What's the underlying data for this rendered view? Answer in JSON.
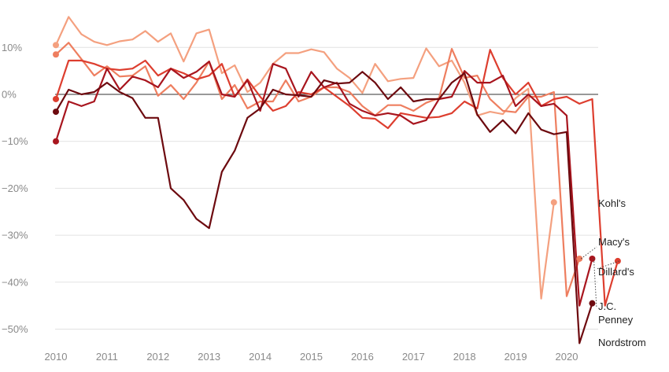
{
  "chart_data": {
    "type": "line",
    "x_start": 2010.0,
    "x_step": 0.25,
    "xlim": [
      2010,
      2020.5
    ],
    "ylim": [
      -52,
      17
    ],
    "y_ticks": [
      10,
      0,
      -10,
      -20,
      -30,
      -40,
      -50
    ],
    "y_tick_labels": [
      "10%",
      "0%",
      "−10%",
      "−20%",
      "−30%",
      "−40%",
      "−50%"
    ],
    "x_ticks": [
      2010,
      2011,
      2012,
      2013,
      2014,
      2015,
      2016,
      2017,
      2018,
      2019,
      2020
    ],
    "x_tick_labels": [
      "2010",
      "2011",
      "2012",
      "2013",
      "2014",
      "2015",
      "2016",
      "2017",
      "2018",
      "2019",
      "2020"
    ],
    "grid": true,
    "series": [
      {
        "name": "Kohl's",
        "color": "#f4a07f",
        "values": [
          10.5,
          16.5,
          12.8,
          11.2,
          10.5,
          11.3,
          11.7,
          13.5,
          11.2,
          13.0,
          7.0,
          13.0,
          13.8,
          4.5,
          6.2,
          0.5,
          2.5,
          6.5,
          8.8,
          8.8,
          9.6,
          9.0,
          5.5,
          3.5,
          0.3,
          6.5,
          2.8,
          3.3,
          3.5,
          9.8,
          6.0,
          7.2,
          2.5,
          -4.5,
          -3.7,
          -4.2,
          -0.8,
          1.2,
          -43.5,
          -23.0
        ]
      },
      {
        "name": "Macy's",
        "color": "#ee7e5f",
        "values": [
          8.5,
          11.0,
          7.5,
          4.0,
          6.0,
          3.8,
          4.0,
          6.0,
          -0.3,
          2.0,
          -1.0,
          2.5,
          7.0,
          -1.0,
          2.0,
          -3.0,
          -1.5,
          -1.5,
          3.0,
          -1.5,
          -0.5,
          1.5,
          1.5,
          0.5,
          -2.5,
          -4.5,
          -2.3,
          -2.3,
          -3.5,
          -1.8,
          -0.8,
          9.7,
          3.5,
          4.0,
          -1.0,
          -3.5,
          -3.8,
          -0.5,
          -0.5,
          0.5,
          -43.0,
          -35.0
        ]
      },
      {
        "name": "Dillard's",
        "color": "#dd3e2f",
        "values": [
          -1.0,
          7.2,
          7.2,
          6.5,
          5.5,
          5.2,
          5.5,
          7.2,
          4.0,
          5.5,
          4.5,
          3.2,
          4.0,
          6.5,
          -0.5,
          3.2,
          -0.5,
          -3.5,
          -2.5,
          0.5,
          0.0,
          1.5,
          -0.5,
          -2.5,
          -5.0,
          -5.2,
          -7.2,
          -4.0,
          -4.5,
          -5.0,
          -4.8,
          -4.0,
          -1.5,
          -3.0,
          9.5,
          3.5,
          0.0,
          2.5,
          -2.5,
          -1.0,
          -0.5,
          -2.0,
          -1.0,
          -45.0,
          -35.5
        ]
      },
      {
        "name": "J.C. Penney",
        "color": "#a8151e",
        "values": [
          -10.0,
          -1.5,
          -2.5,
          -1.5,
          5.5,
          1.0,
          3.8,
          3.0,
          1.5,
          5.5,
          3.5,
          4.8,
          7.0,
          0.0,
          -0.5,
          3.0,
          -3.5,
          6.5,
          5.5,
          -0.5,
          4.8,
          1.5,
          2.5,
          -2.0,
          -3.5,
          -4.5,
          -4.0,
          -4.5,
          -6.3,
          -5.5,
          -1.0,
          -0.5,
          5.0,
          2.5,
          2.5,
          4.0,
          -2.5,
          0.0,
          -2.5,
          -2.0,
          -4.5,
          -45.0,
          -35.0
        ]
      },
      {
        "name": "Nordstrom",
        "color": "#6d0a0f",
        "values": [
          -3.7,
          1.0,
          0.0,
          0.5,
          2.5,
          0.5,
          -0.8,
          -5.0,
          -5.0,
          -20.0,
          -22.5,
          -26.5,
          -28.5,
          -16.5,
          -12.0,
          -5.0,
          -3.0,
          1.0,
          0.0,
          -0.2,
          -0.5,
          3.0,
          2.3,
          2.5,
          4.8,
          2.5,
          -1.0,
          1.5,
          -1.5,
          -1.0,
          -1.0,
          2.5,
          4.5,
          -4.3,
          -8.0,
          -5.5,
          -8.3,
          -4.0,
          -7.5,
          -8.5,
          -8.0,
          -53.0,
          -44.5
        ]
      }
    ],
    "end_labels": [
      {
        "text": "Kohl's",
        "series": "Kohl's"
      },
      {
        "text": "Macy's",
        "series": "Macy's"
      },
      {
        "text": "Dillard's",
        "series": "Dillard's"
      },
      {
        "text": "J.C.",
        "series": "J.C. Penney"
      },
      {
        "text": "Penney",
        "series": "J.C. Penney"
      },
      {
        "text": "Nordstrom",
        "series": "Nordstrom"
      }
    ]
  }
}
